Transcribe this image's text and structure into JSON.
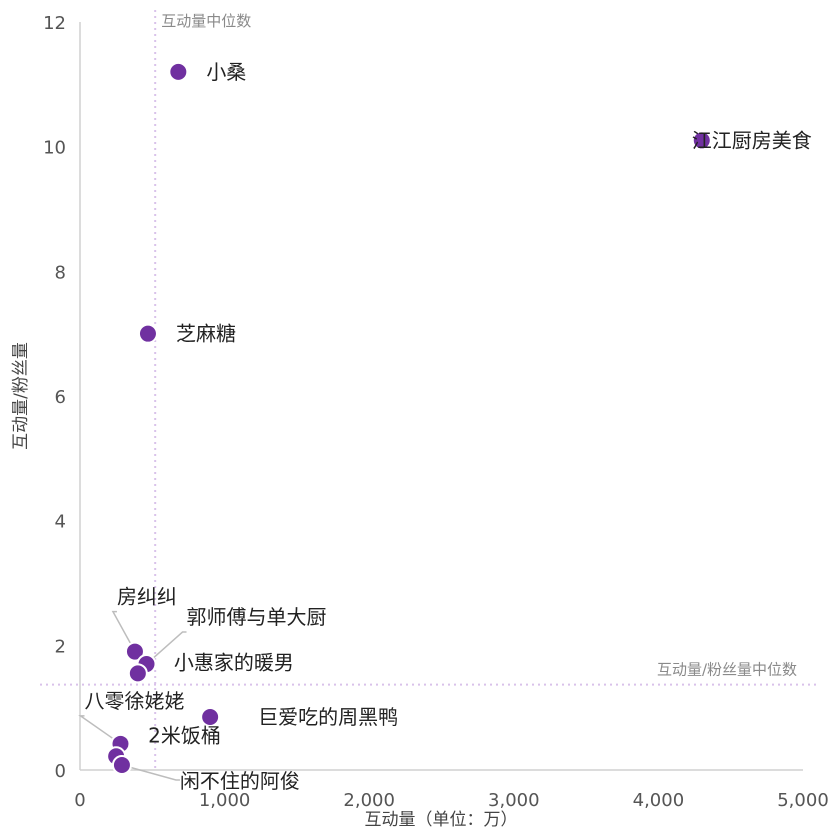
{
  "chart_data": {
    "type": "scatter",
    "xlabel": "互动量（单位：万）",
    "ylabel": "互动量/粉丝量",
    "xlim": [
      0,
      5000
    ],
    "ylim": [
      0,
      12
    ],
    "x_ticks": [
      "0",
      "1,000",
      "2,000",
      "3,000",
      "4,000",
      "5,000"
    ],
    "y_ticks": [
      "0",
      "2",
      "4",
      "6",
      "8",
      "10",
      "12"
    ],
    "grid": false,
    "point_color": "#7030a0",
    "ref_color": "#d9c2ea",
    "reference_lines": [
      {
        "axis": "x",
        "value": 520,
        "label": "互动量中位数"
      },
      {
        "axis": "y",
        "value": 1.37,
        "label": "互动量/粉丝量中位数"
      }
    ],
    "points": [
      {
        "name": "小桑",
        "x": 680,
        "y": 11.2
      },
      {
        "name": "江江厨房美食",
        "x": 4300,
        "y": 10.1
      },
      {
        "name": "芝麻糖",
        "x": 470,
        "y": 7.0
      },
      {
        "name": "房纠纠",
        "x": 380,
        "y": 1.9
      },
      {
        "name": "郭师傅与单大厨",
        "x": 460,
        "y": 1.7
      },
      {
        "name": "小惠家的暖男",
        "x": 400,
        "y": 1.55
      },
      {
        "name": "巨爱吃的周黑鸭",
        "x": 900,
        "y": 0.85
      },
      {
        "name": "八零徐姥姥",
        "x": 280,
        "y": 0.42
      },
      {
        "name": "2米饭桶",
        "x": 250,
        "y": 0.22
      },
      {
        "name": "闲不住的阿俊",
        "x": 290,
        "y": 0.08
      }
    ]
  }
}
